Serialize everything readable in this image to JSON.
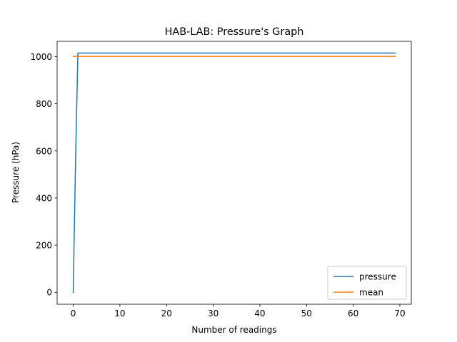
{
  "chart_data": {
    "type": "line",
    "title": "HAB-LAB: Pressure's Graph",
    "xlabel": "Number of readings",
    "ylabel": "Pressure (hPa)",
    "xlim": [
      -3.45,
      72.45
    ],
    "ylim": [
      -50.7,
      1065
    ],
    "xticks": [
      0,
      10,
      20,
      30,
      40,
      50,
      60,
      70
    ],
    "yticks": [
      0,
      200,
      400,
      600,
      800,
      1000
    ],
    "grid": false,
    "legend_position": "lower-right",
    "series": [
      {
        "name": "pressure",
        "color": "#1f77b4",
        "x": [
          0,
          0.5,
          1,
          2,
          10,
          20,
          30,
          40,
          50,
          60,
          69
        ],
        "y": [
          0,
          560,
          1015,
          1015,
          1015,
          1015,
          1015,
          1015,
          1015,
          1015,
          1015
        ]
      },
      {
        "name": "mean",
        "color": "#ff7f0e",
        "x": [
          0,
          69
        ],
        "y": [
          1001,
          1001
        ]
      }
    ]
  }
}
